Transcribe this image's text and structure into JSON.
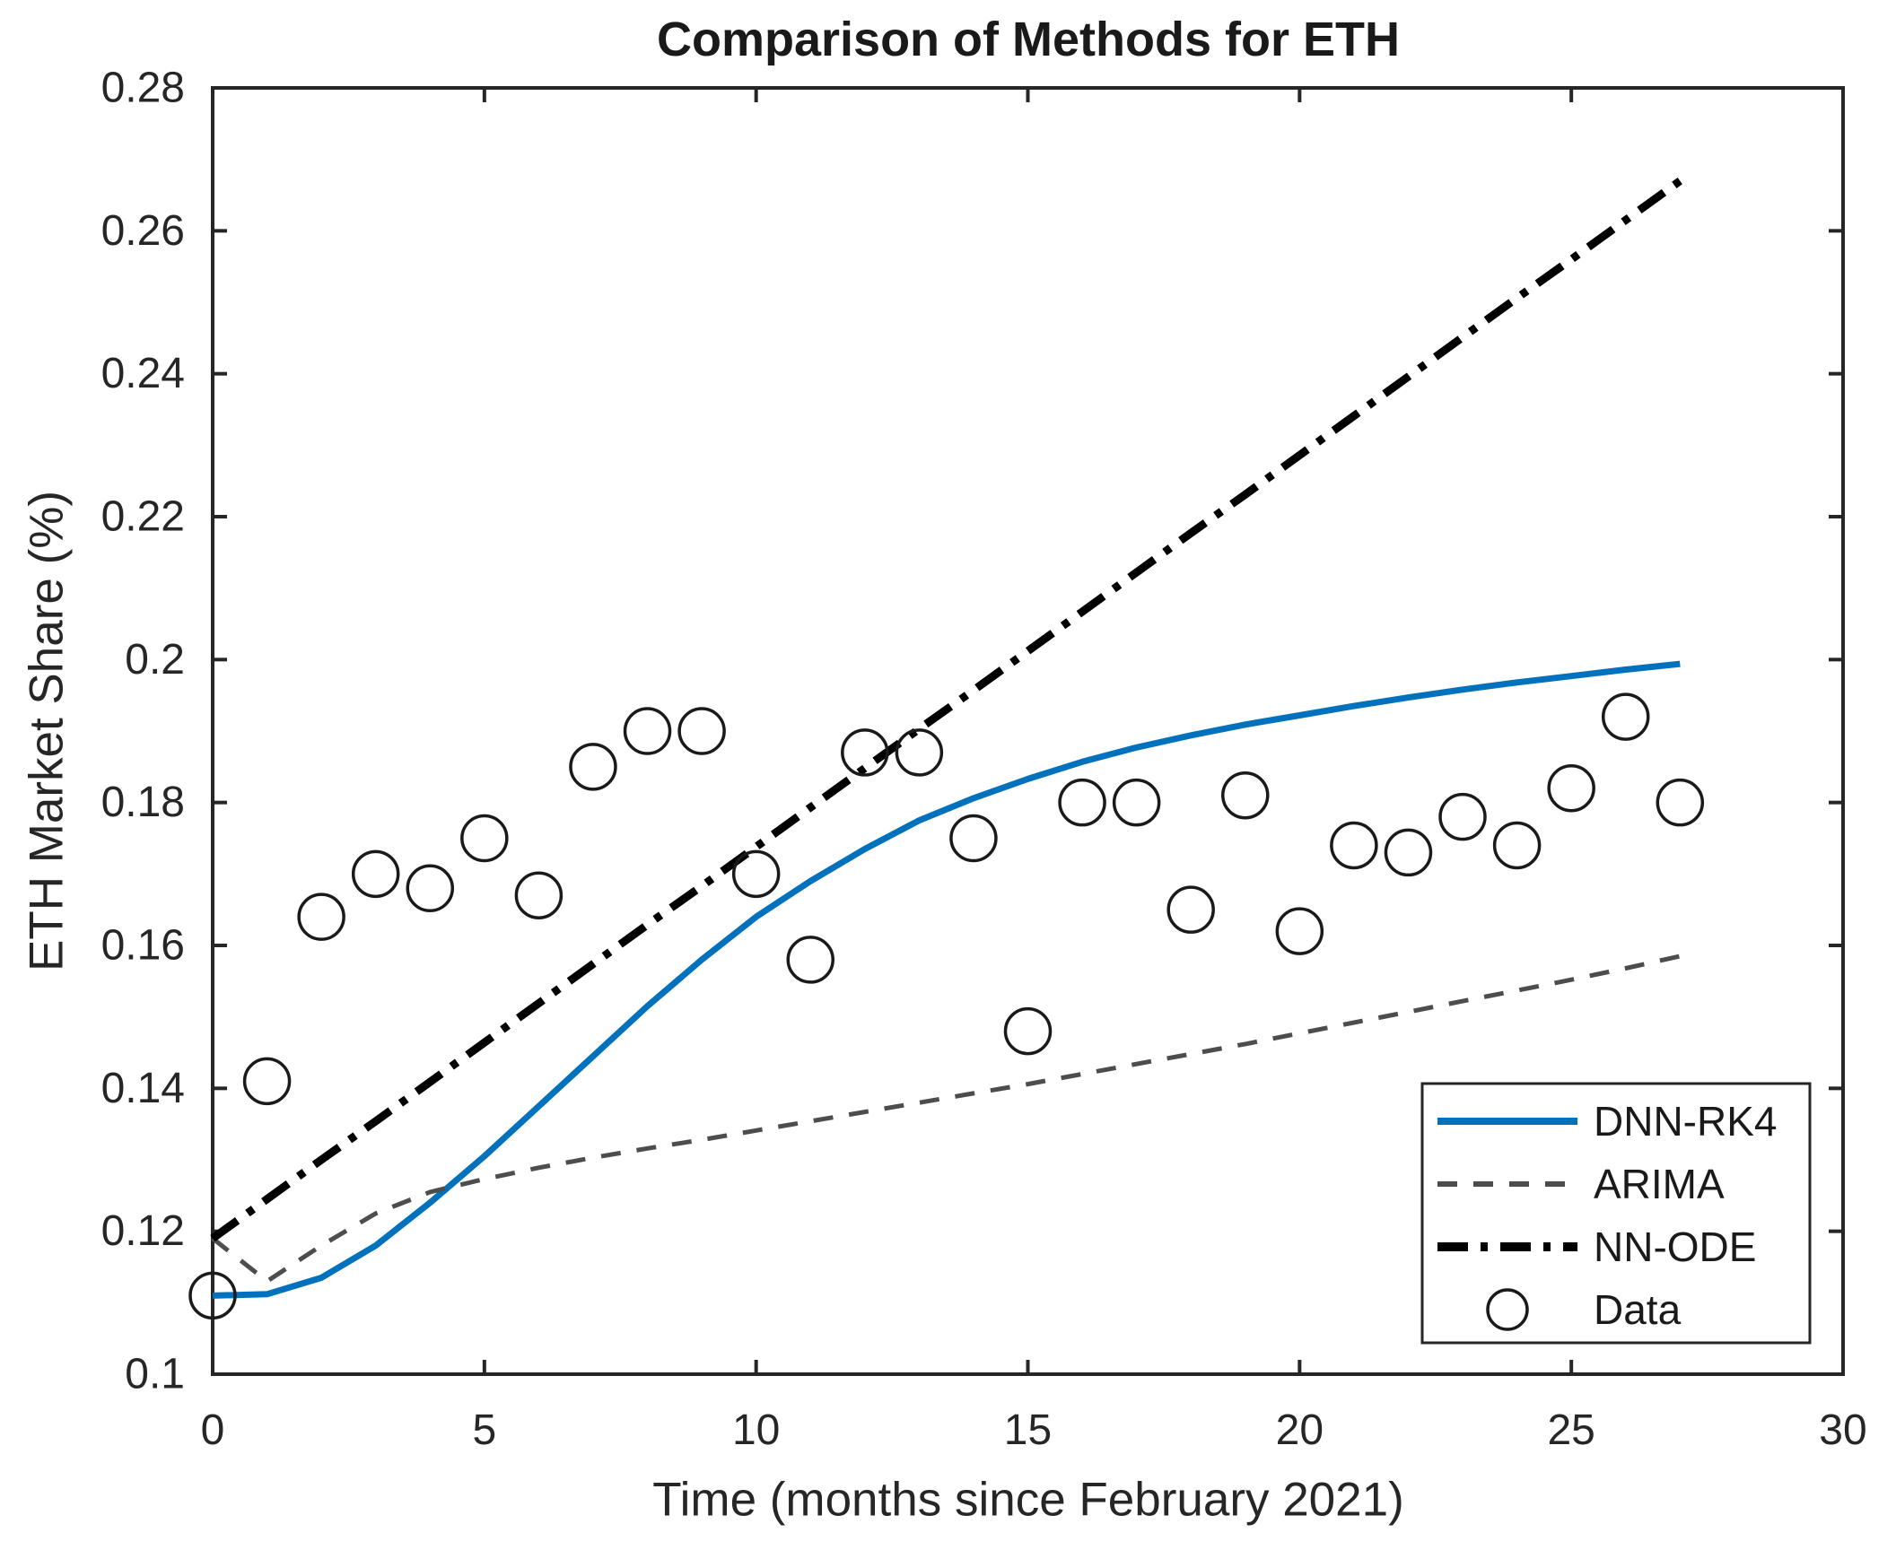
{
  "title": "Comparison of Methods for ETH",
  "axes": {
    "xlabel": "Time (months since February 2021)",
    "ylabel": "ETH Market Share (%)",
    "xlim": [
      0,
      30
    ],
    "ylim": [
      0.1,
      0.28
    ],
    "xticks": [
      0,
      5,
      10,
      15,
      20,
      25,
      30
    ],
    "xtick_labels": [
      "0",
      "5",
      "10",
      "15",
      "20",
      "25",
      "30"
    ],
    "yticks": [
      0.1,
      0.12,
      0.14,
      0.16,
      0.18,
      0.2,
      0.22,
      0.24,
      0.26,
      0.28
    ],
    "ytick_labels": [
      "0.1",
      "0.12",
      "0.14",
      "0.16",
      "0.18",
      "0.2",
      "0.22",
      "0.24",
      "0.26",
      "0.28"
    ],
    "box": true,
    "grid": false
  },
  "colors": {
    "dnn_rk4": "#0072BD",
    "arima": "#4D4D4D",
    "nn_ode": "#000000",
    "data_marker": "#1a1a1a",
    "axis": "#262626",
    "text": "#262626",
    "background": "#ffffff"
  },
  "legend": {
    "position": "southeast",
    "entries": [
      {
        "label": "DNN-RK4",
        "marker": "line-solid",
        "series": "DNN-RK4"
      },
      {
        "label": "ARIMA",
        "marker": "line-dashed",
        "series": "ARIMA"
      },
      {
        "label": "NN-ODE",
        "marker": "line-dashdot",
        "series": "NN-ODE"
      },
      {
        "label": "Data",
        "marker": "circle",
        "series": "Data"
      }
    ]
  },
  "chart_data": {
    "type": "line",
    "title": "Comparison of Methods for ETH",
    "xlabel": "Time (months since February 2021)",
    "ylabel": "ETH Market Share (%)",
    "xlim": [
      0,
      30
    ],
    "ylim": [
      0.1,
      0.28
    ],
    "x": [
      0,
      1,
      2,
      3,
      4,
      5,
      6,
      7,
      8,
      9,
      10,
      11,
      12,
      13,
      14,
      15,
      16,
      17,
      18,
      19,
      20,
      21,
      22,
      23,
      24,
      25,
      26,
      27
    ],
    "series": [
      {
        "name": "DNN-RK4",
        "type": "line",
        "style": "solid",
        "color": "#0072BD",
        "width": 7,
        "values": [
          0.111,
          0.1112,
          0.1135,
          0.118,
          0.124,
          0.1305,
          0.1375,
          0.1445,
          0.1515,
          0.158,
          0.164,
          0.169,
          0.1735,
          0.1775,
          0.1806,
          0.1833,
          0.1857,
          0.1877,
          0.1894,
          0.1909,
          0.1922,
          0.1935,
          0.1947,
          0.1958,
          0.1968,
          0.1977,
          0.1986,
          0.1994
        ]
      },
      {
        "name": "ARIMA",
        "type": "line",
        "style": "dashed",
        "color": "#4D4D4D",
        "width": 5,
        "values": [
          0.119,
          0.113,
          0.118,
          0.1225,
          0.1255,
          0.1273,
          0.1289,
          0.1303,
          0.1316,
          0.1328,
          0.1341,
          0.1354,
          0.1367,
          0.138,
          0.1393,
          0.1406,
          0.142,
          0.1434,
          0.1448,
          0.1462,
          0.1477,
          0.1492,
          0.1507,
          0.1522,
          0.1537,
          0.1552,
          0.1568,
          0.1585
        ]
      },
      {
        "name": "NN-ODE",
        "type": "line",
        "style": "dashdot",
        "color": "#000000",
        "width": 9,
        "values": [
          0.119,
          0.1245,
          0.13,
          0.1354,
          0.1409,
          0.1464,
          0.1519,
          0.1574,
          0.1629,
          0.1683,
          0.1738,
          0.1793,
          0.1848,
          0.1903,
          0.1957,
          0.2012,
          0.2067,
          0.2122,
          0.2177,
          0.2231,
          0.2286,
          0.2341,
          0.2396,
          0.2451,
          0.2506,
          0.256,
          0.2615,
          0.267
        ]
      },
      {
        "name": "Data",
        "type": "scatter",
        "marker": "open-circle",
        "color": "#1a1a1a",
        "values": [
          0.111,
          0.141,
          0.164,
          0.17,
          0.168,
          0.175,
          0.167,
          0.185,
          0.19,
          0.19,
          0.17,
          0.158,
          0.187,
          0.187,
          0.175,
          0.148,
          0.18,
          0.18,
          0.165,
          0.181,
          0.162,
          0.174,
          0.173,
          0.178,
          0.174,
          0.182,
          0.192,
          0.18
        ]
      }
    ],
    "legend_position": "southeast"
  }
}
